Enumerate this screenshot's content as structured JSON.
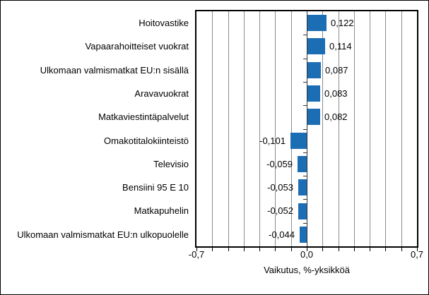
{
  "chart_data": {
    "type": "bar",
    "orientation": "horizontal",
    "categories": [
      "Hoitovastike",
      "Vapaarahoitteiset vuokrat",
      "Ulkomaan valmismatkat EU:n sisällä",
      "Aravavuokrat",
      "Matkaviestintäpalvelut",
      "Omakotitalokiinteistö",
      "Televisio",
      "Bensiini 95 E 10",
      "Matkapuhelin",
      "Ulkomaan valmismatkat EU:n ulkopuolelle"
    ],
    "values": [
      0.122,
      0.114,
      0.087,
      0.083,
      0.082,
      -0.101,
      -0.059,
      -0.053,
      -0.052,
      -0.044
    ],
    "value_labels": [
      "0,122",
      "0,114",
      "0,087",
      "0,083",
      "0,082",
      "-0,101",
      "-0,059",
      "-0,053",
      "-0,052",
      "-0,044"
    ],
    "title": "",
    "xlabel": "Vaikutus, %-yksikköä",
    "ylabel": "",
    "xlim": [
      -0.7,
      0.7
    ],
    "x_tick_labels": [
      {
        "value": -0.7,
        "label": "-0,7"
      },
      {
        "value": 0.0,
        "label": "0,0"
      },
      {
        "value": 0.7,
        "label": "0,7"
      }
    ],
    "gridline_step": 0.1,
    "grid": true,
    "legend": false,
    "bar_color": "#1c6eb4"
  },
  "colors": {
    "bar": "#1c6eb4",
    "gridline": "#8c8c8c",
    "zero_axis": "#333333",
    "plot_border": "#000000",
    "background": "#ffffff"
  }
}
